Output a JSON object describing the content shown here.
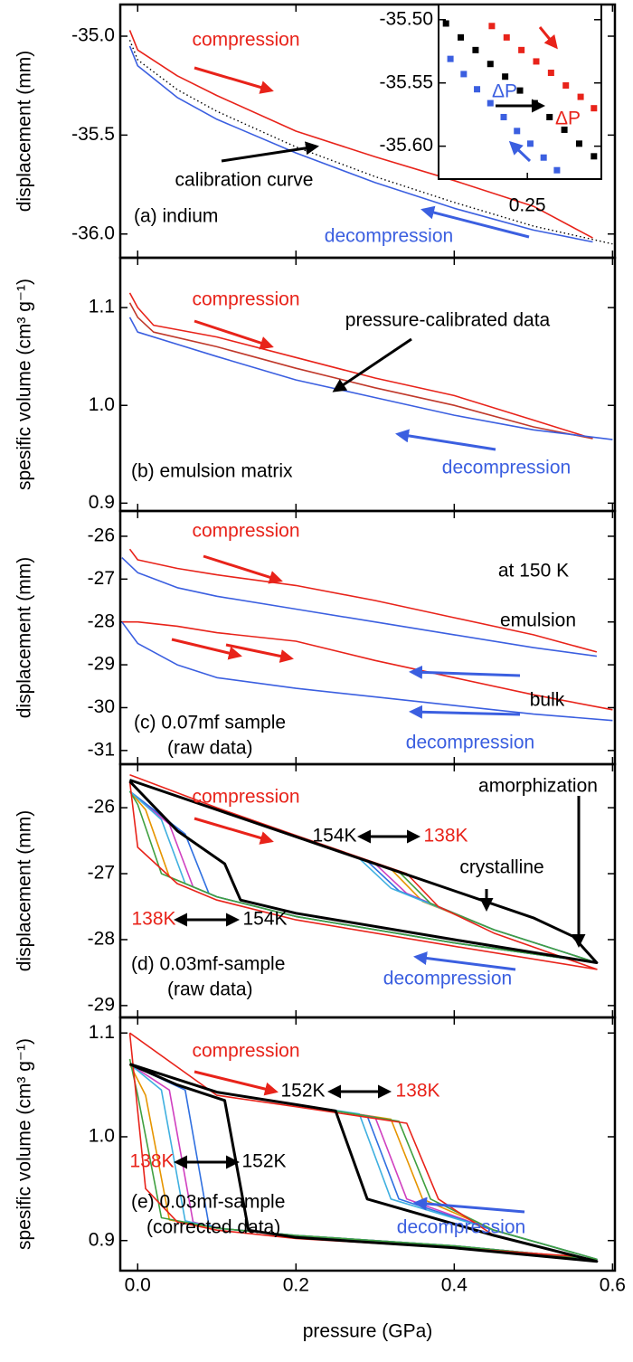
{
  "chart_data": [
    {
      "type": "line",
      "ylabel": "displacement (mm)",
      "xlim": [
        -0.022,
        0.603
      ],
      "ylim": [
        -36.12,
        -34.84
      ],
      "yticks": [
        {
          "value": -35,
          "label": "-35.0"
        },
        -35.5,
        {
          "value": -36,
          "label": "-36.0"
        }
      ],
      "series": [
        {
          "color": "#e8231a",
          "x": [
            -0.01,
            0.0,
            0.05,
            0.1,
            0.2,
            0.3,
            0.4,
            0.5,
            0.575
          ],
          "values": [
            -34.97,
            -35.07,
            -35.2,
            -35.3,
            -35.48,
            -35.61,
            -35.73,
            -35.86,
            -36.02
          ]
        },
        {
          "color": "#000000",
          "style": "dotted",
          "x": [
            -0.01,
            0.0,
            0.05,
            0.1,
            0.2,
            0.3,
            0.4,
            0.5,
            0.6
          ],
          "values": [
            -35.02,
            -35.12,
            -35.27,
            -35.38,
            -35.56,
            -35.71,
            -35.84,
            -35.96,
            -36.05
          ]
        },
        {
          "color": "#3b5fe0",
          "x": [
            -0.01,
            0.0,
            0.05,
            0.1,
            0.2,
            0.3,
            0.4,
            0.5,
            0.575
          ],
          "values": [
            -35.05,
            -35.15,
            -35.31,
            -35.42,
            -35.59,
            -35.74,
            -35.87,
            -35.98,
            -36.04
          ]
        }
      ],
      "annotations": [
        {
          "text": "compression",
          "color": "#e8231a"
        },
        {
          "text": "calibration curve",
          "color": "#000000"
        },
        {
          "text": "(a) indium",
          "color": "#000000"
        },
        {
          "text": "decompression",
          "color": "#3b5fe0"
        }
      ]
    },
    {
      "type": "line",
      "ylabel": "spesific volume (cm³ g⁻¹)",
      "xlim": [
        -0.022,
        0.603
      ],
      "ylim": [
        0.892,
        1.151
      ],
      "yticks": [
        1.1,
        {
          "value": 1,
          "label": "1.0"
        },
        0.9
      ],
      "series": [
        {
          "color": "#e8231a",
          "x": [
            -0.01,
            0.0,
            0.02,
            0.1,
            0.2,
            0.3,
            0.4,
            0.5,
            0.575
          ],
          "values": [
            1.115,
            1.1,
            1.082,
            1.07,
            1.049,
            1.028,
            1.01,
            0.985,
            0.966
          ]
        },
        {
          "color": "#c0392b",
          "x": [
            -0.01,
            0.0,
            0.02,
            0.1,
            0.2,
            0.3,
            0.4,
            0.5,
            0.575
          ],
          "values": [
            1.105,
            1.09,
            1.075,
            1.06,
            1.038,
            1.018,
            1.0,
            0.978,
            0.966
          ]
        },
        {
          "color": "#3b5fe0",
          "x": [
            -0.01,
            0.0,
            0.1,
            0.2,
            0.3,
            0.4,
            0.5,
            0.6
          ],
          "values": [
            1.09,
            1.075,
            1.05,
            1.026,
            1.008,
            0.99,
            0.975,
            0.965
          ]
        }
      ],
      "annotations": [
        {
          "text": "compression",
          "color": "#e8231a"
        },
        {
          "text": "pressure-calibrated data",
          "color": "#000000"
        },
        {
          "text": "(b) emulsion matrix",
          "color": "#000000"
        },
        {
          "text": "decompression",
          "color": "#3b5fe0"
        }
      ]
    },
    {
      "type": "line",
      "ylabel": "displacement (mm)",
      "xlim": [
        -0.022,
        0.603
      ],
      "ylim": [
        -31.32,
        -25.41
      ],
      "yticks": [
        -26,
        -27,
        -28,
        -29,
        -30,
        -31
      ],
      "series": [
        {
          "color": "#e8231a",
          "x": [
            -0.01,
            0.0,
            0.05,
            0.1,
            0.2,
            0.3,
            0.4,
            0.5,
            0.58
          ],
          "values": [
            -26.3,
            -26.55,
            -26.75,
            -26.9,
            -27.15,
            -27.5,
            -27.9,
            -28.3,
            -28.7
          ]
        },
        {
          "color": "#3b5fe0",
          "x": [
            -0.02,
            0.0,
            0.05,
            0.1,
            0.2,
            0.3,
            0.4,
            0.5,
            0.58
          ],
          "values": [
            -26.5,
            -26.85,
            -27.2,
            -27.4,
            -27.7,
            -28.0,
            -28.3,
            -28.6,
            -28.8
          ]
        },
        {
          "color": "#e8231a",
          "x": [
            -0.02,
            0.0,
            0.05,
            0.1,
            0.2,
            0.3,
            0.4,
            0.5,
            0.6
          ],
          "values": [
            -28.0,
            -28.0,
            -28.1,
            -28.25,
            -28.45,
            -28.9,
            -29.3,
            -29.7,
            -30.05
          ]
        },
        {
          "color": "#3b5fe0",
          "x": [
            -0.02,
            0.0,
            0.05,
            0.1,
            0.2,
            0.3,
            0.4,
            0.5,
            0.6
          ],
          "values": [
            -28.0,
            -28.5,
            -29.0,
            -29.3,
            -29.55,
            -29.75,
            -29.95,
            -30.15,
            -30.3
          ]
        }
      ],
      "annotations": [
        {
          "text": "compression",
          "color": "#e8231a"
        },
        {
          "text": "at 150 K",
          "color": "#000000"
        },
        {
          "text": "emulsion",
          "color": "#000000"
        },
        {
          "text": "bulk",
          "color": "#000000"
        },
        {
          "text": "(c) 0.07mf sample",
          "color": "#000000"
        },
        {
          "text": "(raw data)",
          "color": "#000000"
        },
        {
          "text": "decompression",
          "color": "#3b5fe0"
        }
      ]
    },
    {
      "type": "line",
      "ylabel": "displacement (mm)",
      "xlim": [
        -0.022,
        0.603
      ],
      "ylim": [
        -29.18,
        -25.34
      ],
      "yticks": [
        -26,
        -27,
        -28,
        -29
      ],
      "series": [
        {
          "color": "#e69500",
          "x": [
            -0.01,
            0.1,
            0.2,
            0.32,
            0.36,
            0.45,
            0.58,
            0.4,
            0.2,
            0.1,
            0.04,
            0.01,
            -0.01
          ],
          "values": [
            -25.58,
            -26.03,
            -26.44,
            -26.93,
            -27.42,
            -27.85,
            -28.35,
            -28.05,
            -27.65,
            -27.35,
            -27.05,
            -26.03,
            -25.75
          ]
        },
        {
          "color": "#d040c0",
          "x": [
            -0.01,
            0.1,
            0.2,
            0.3,
            0.34,
            0.45,
            0.58,
            0.4,
            0.2,
            0.1,
            0.07,
            0.04,
            -0.01
          ],
          "values": [
            -25.58,
            -26.03,
            -26.44,
            -26.85,
            -27.3,
            -27.85,
            -28.35,
            -28.05,
            -27.65,
            -27.35,
            -27.2,
            -26.25,
            -25.75
          ]
        },
        {
          "color": "#3070e0",
          "x": [
            -0.01,
            0.1,
            0.2,
            0.29,
            0.33,
            0.45,
            0.58,
            0.4,
            0.2,
            0.1,
            0.09,
            0.06,
            -0.01
          ],
          "values": [
            -25.58,
            -26.03,
            -26.44,
            -26.81,
            -27.26,
            -27.85,
            -28.35,
            -28.05,
            -27.65,
            -27.35,
            -27.3,
            -26.4,
            -25.75
          ]
        },
        {
          "color": "#40b0e0",
          "x": [
            -0.01,
            0.1,
            0.2,
            0.28,
            0.32,
            0.45,
            0.58,
            0.4,
            0.2,
            0.1,
            0.06,
            0.03,
            -0.01
          ],
          "values": [
            -25.58,
            -26.03,
            -26.44,
            -26.77,
            -27.22,
            -27.85,
            -28.35,
            -28.05,
            -27.65,
            -27.35,
            -27.15,
            -26.18,
            -25.75
          ]
        },
        {
          "color": "#40a040",
          "x": [
            -0.01,
            0.1,
            0.2,
            0.33,
            0.37,
            0.45,
            0.58,
            0.4,
            0.2,
            0.1,
            0.03,
            0.0,
            -0.01
          ],
          "values": [
            -25.58,
            -26.03,
            -26.44,
            -26.97,
            -27.45,
            -27.85,
            -28.35,
            -28.05,
            -27.65,
            -27.35,
            -27.0,
            -25.95,
            -25.75
          ]
        },
        {
          "color": "#e8231a",
          "x": [
            -0.01,
            0.1,
            0.2,
            0.34,
            0.38,
            0.45,
            0.58,
            0.4,
            0.2,
            0.1,
            0.05,
            0.0,
            -0.01
          ],
          "values": [
            -25.5,
            -26.0,
            -26.42,
            -27.0,
            -27.5,
            -27.9,
            -28.45,
            -28.1,
            -27.7,
            -27.4,
            -27.15,
            -26.6,
            -25.6
          ]
        },
        {
          "color": "#000000",
          "linewidth": 3,
          "x": [
            -0.01,
            0.1,
            0.2,
            0.3,
            0.4,
            0.5,
            0.55,
            0.58,
            0.4,
            0.2,
            0.13,
            0.11,
            0.05,
            -0.01
          ],
          "values": [
            -25.58,
            -26.03,
            -26.44,
            -26.85,
            -27.26,
            -27.67,
            -27.95,
            -28.35,
            -28.0,
            -27.6,
            -27.4,
            -26.85,
            -26.35,
            -25.6
          ]
        }
      ],
      "annotations": [
        {
          "text": "compression",
          "color": "#e8231a"
        },
        {
          "text": "amorphization",
          "color": "#000000"
        },
        {
          "text": "154K",
          "color": "#000000"
        },
        {
          "text": "138K",
          "color": "#e8231a"
        },
        {
          "text": "crystalline",
          "color": "#000000"
        },
        {
          "text": "138K",
          "color": "#e8231a"
        },
        {
          "text": "154K",
          "color": "#000000"
        },
        {
          "text": "(d) 0.03mf-sample",
          "color": "#000000"
        },
        {
          "text": "(raw data)",
          "color": "#000000"
        },
        {
          "text": "decompression",
          "color": "#3b5fe0"
        }
      ]
    },
    {
      "type": "line",
      "ylabel": "spesific volume (cm³ g⁻¹)",
      "xlabel": "pressure (GPa)",
      "xlim": [
        -0.022,
        0.603
      ],
      "ylim": [
        0.871,
        1.115
      ],
      "xticks": [
        {
          "value": 0,
          "label": "0.0"
        },
        0.2,
        0.4,
        0.6
      ],
      "yticks": [
        1.1,
        {
          "value": 1,
          "label": "1.0"
        },
        0.9
      ],
      "series": [
        {
          "color": "#e69500",
          "x": [
            -0.01,
            0.1,
            0.2,
            0.32,
            0.36,
            0.45,
            0.58,
            0.4,
            0.2,
            0.1,
            0.04,
            0.01,
            -0.01
          ],
          "values": [
            1.07,
            1.043,
            1.031,
            1.017,
            0.94,
            0.91,
            0.882,
            0.895,
            0.905,
            0.912,
            0.92,
            1.04,
            1.07
          ]
        },
        {
          "color": "#d040c0",
          "x": [
            -0.01,
            0.1,
            0.2,
            0.3,
            0.34,
            0.45,
            0.58,
            0.4,
            0.2,
            0.1,
            0.07,
            0.04,
            -0.01
          ],
          "values": [
            1.07,
            1.043,
            1.031,
            1.019,
            0.94,
            0.91,
            0.882,
            0.895,
            0.905,
            0.912,
            0.918,
            1.045,
            1.07
          ]
        },
        {
          "color": "#3070e0",
          "x": [
            -0.01,
            0.1,
            0.2,
            0.29,
            0.33,
            0.45,
            0.58,
            0.4,
            0.2,
            0.1,
            0.09,
            0.06,
            -0.01
          ],
          "values": [
            1.07,
            1.043,
            1.031,
            1.02,
            0.94,
            0.91,
            0.882,
            0.895,
            0.905,
            0.912,
            0.915,
            1.045,
            1.07
          ]
        },
        {
          "color": "#40b0e0",
          "x": [
            -0.01,
            0.1,
            0.2,
            0.28,
            0.32,
            0.45,
            0.58,
            0.4,
            0.2,
            0.1,
            0.06,
            0.03,
            -0.01
          ],
          "values": [
            1.07,
            1.043,
            1.031,
            1.022,
            0.94,
            0.91,
            0.882,
            0.895,
            0.905,
            0.912,
            0.919,
            1.045,
            1.07
          ]
        },
        {
          "color": "#40a040",
          "x": [
            -0.01,
            0.1,
            0.2,
            0.33,
            0.37,
            0.45,
            0.58,
            0.4,
            0.2,
            0.1,
            0.03,
            0.0,
            -0.01
          ],
          "values": [
            1.07,
            1.043,
            1.031,
            1.015,
            0.94,
            0.91,
            0.882,
            0.895,
            0.905,
            0.912,
            0.922,
            1.04,
            1.075
          ]
        },
        {
          "color": "#e8231a",
          "x": [
            -0.01,
            0.1,
            0.2,
            0.34,
            0.38,
            0.45,
            0.55,
            0.4,
            0.2,
            0.1,
            0.05,
            0.01,
            -0.01
          ],
          "values": [
            1.1,
            1.04,
            1.029,
            1.013,
            0.94,
            0.905,
            0.885,
            0.893,
            0.902,
            0.91,
            0.918,
            0.95,
            1.1
          ]
        },
        {
          "color": "#000000",
          "linewidth": 3,
          "x": [
            -0.01,
            0.1,
            0.2,
            0.25,
            0.29,
            0.45,
            0.58,
            0.4,
            0.2,
            0.14,
            0.11,
            0.05,
            -0.01
          ],
          "values": [
            1.07,
            1.043,
            1.031,
            1.025,
            0.94,
            0.905,
            0.88,
            0.893,
            0.903,
            0.91,
            1.035,
            1.05,
            1.07
          ]
        }
      ],
      "annotations": [
        {
          "text": "compression",
          "color": "#e8231a"
        },
        {
          "text": "152K",
          "color": "#000000"
        },
        {
          "text": "138K",
          "color": "#e8231a"
        },
        {
          "text": "138K",
          "color": "#e8231a"
        },
        {
          "text": "152K",
          "color": "#000000"
        },
        {
          "text": "(e) 0.03mf-sample",
          "color": "#000000"
        },
        {
          "text": "(corrected data)",
          "color": "#000000"
        },
        {
          "text": "decompression",
          "color": "#3b5fe0"
        }
      ]
    },
    {
      "type": "scatter",
      "xlim": [
        0.19,
        0.3
      ],
      "ylim": [
        -35.626,
        -35.488
      ],
      "xticks": [
        0.25
      ],
      "yticks": [
        {
          "value": -35.5,
          "label": "-35.50"
        },
        -35.55,
        {
          "value": -35.6,
          "label": "-35.60"
        }
      ],
      "series": [
        {
          "color": "#000000",
          "x": [
            0.195,
            0.205,
            0.215,
            0.225,
            0.235,
            0.245,
            0.255,
            0.265,
            0.275,
            0.285,
            0.295
          ],
          "values": [
            -35.503,
            -35.514,
            -35.524,
            -35.535,
            -35.545,
            -35.556,
            -35.566,
            -35.577,
            -35.587,
            -35.598,
            -35.608
          ]
        },
        {
          "color": "#e8231a",
          "x": [
            0.226,
            0.236,
            0.246,
            0.256,
            0.266,
            0.276,
            0.286,
            0.295
          ],
          "values": [
            -35.505,
            -35.514,
            -35.524,
            -35.533,
            -35.542,
            -35.552,
            -35.561,
            -35.57
          ]
        },
        {
          "color": "#3b5fe0",
          "x": [
            0.198,
            0.207,
            0.216,
            0.225,
            0.234,
            0.243,
            0.252,
            0.261,
            0.27
          ],
          "values": [
            -35.531,
            -35.543,
            -35.555,
            -35.566,
            -35.577,
            -35.588,
            -35.598,
            -35.609,
            -35.619
          ]
        }
      ],
      "annotations": [
        {
          "text": "ΔP",
          "color": "#3b5fe0"
        },
        {
          "text": "ΔP",
          "color": "#e8231a"
        }
      ]
    }
  ]
}
